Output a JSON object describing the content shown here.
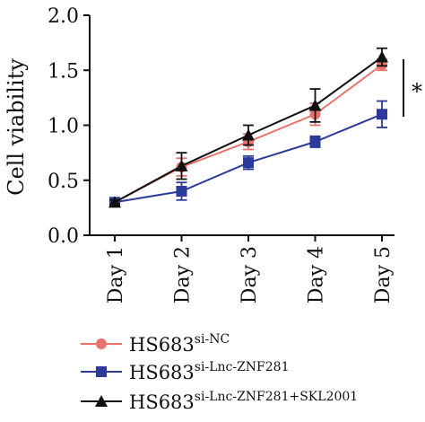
{
  "chart_data": {
    "type": "line",
    "title": "",
    "xlabel": "",
    "ylabel": "Cell viability",
    "categories": [
      "Day 1",
      "Day 2",
      "Day 3",
      "Day 4",
      "Day 5"
    ],
    "ylim": [
      0,
      2.0
    ],
    "yticks": [
      "0.0",
      "0.5",
      "1.0",
      "1.5",
      "2.0"
    ],
    "grid": false,
    "legend_position": "bottom",
    "series": [
      {
        "name_base": "HS683",
        "name_sup": "si-NC",
        "values": [
          0.3,
          0.62,
          0.85,
          1.1,
          1.55
        ],
        "errors": [
          0.02,
          0.08,
          0.07,
          0.1,
          0.05
        ],
        "color": "#e8736c",
        "marker": "circle"
      },
      {
        "name_base": "HS683",
        "name_sup": "si-Lnc-ZNF281",
        "values": [
          0.3,
          0.4,
          0.66,
          0.85,
          1.1
        ],
        "errors": [
          0.02,
          0.08,
          0.06,
          0.05,
          0.12
        ],
        "color": "#2b3a9b",
        "marker": "square"
      },
      {
        "name_base": "HS683",
        "name_sup": "si-Lnc-ZNF281+SKL2001",
        "values": [
          0.3,
          0.63,
          0.91,
          1.18,
          1.62
        ],
        "errors": [
          0.02,
          0.12,
          0.09,
          0.15,
          0.08
        ],
        "color": "#111111",
        "marker": "triangle"
      }
    ],
    "annotation": {
      "text": "*"
    }
  }
}
